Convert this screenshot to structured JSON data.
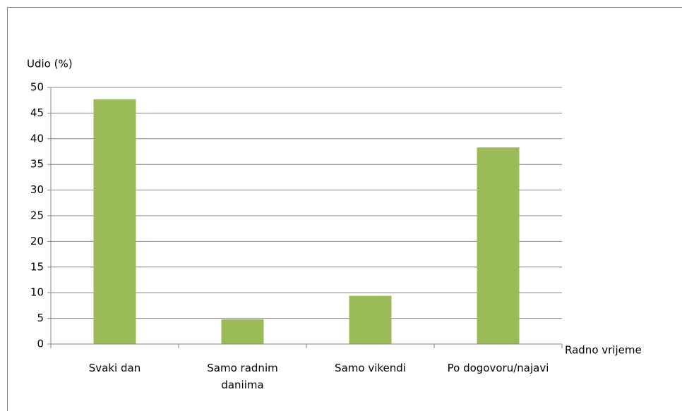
{
  "chart_data": {
    "type": "bar",
    "y_label": "Udio (%)",
    "x_label": "Radno vrijeme",
    "categories": [
      "Svaki dan",
      "Samo radnim daniima",
      "Samo vikendi",
      "Po dogovoru/najavi"
    ],
    "values": [
      47.7,
      4.8,
      9.4,
      38.3
    ],
    "color": "#9bbb59",
    "ylim": [
      0,
      50
    ],
    "yticks": [
      0,
      5,
      10,
      15,
      20,
      25,
      30,
      35,
      40,
      45,
      50
    ],
    "grid": true
  }
}
